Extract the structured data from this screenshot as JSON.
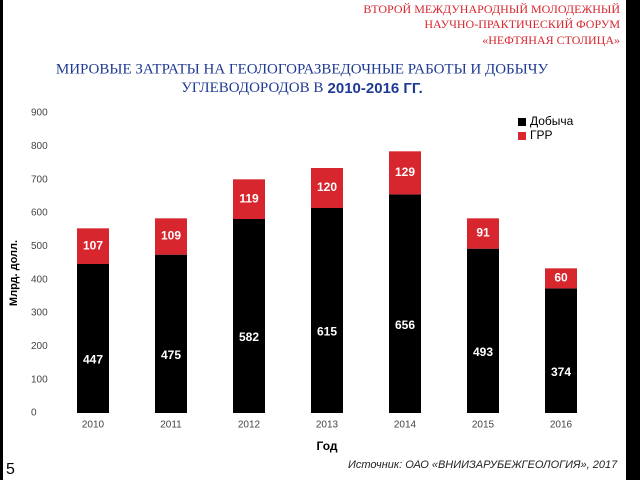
{
  "header": {
    "lines": [
      "ВТОРОЙ МЕЖДУНАРОДНЫЙ МОЛОДЕЖНЫЙ",
      "НАУЧНО-ПРАКТИЧЕСКИЙ ФОРУМ",
      "«НЕФТЯНАЯ СТОЛИЦА»"
    ]
  },
  "title": {
    "line1": "МИРОВЫЕ ЗАТРАТЫ НА ГЕОЛОГОРАЗВЕДОЧНЫЕ РАБОТЫ И ДОБЫЧУ",
    "line2": "УГЛЕВОДОРОДОВ В",
    "line2_bold": "2010-2016 ГГ."
  },
  "chart_data": {
    "type": "bar",
    "stacked": true,
    "categories": [
      "2010",
      "2011",
      "2012",
      "2013",
      "2014",
      "2015",
      "2016"
    ],
    "series": [
      {
        "name": "Добыча",
        "color": "#000000",
        "values": [
          447,
          475,
          582,
          615,
          656,
          493,
          374
        ]
      },
      {
        "name": "ГРР",
        "color": "#d7262e",
        "values": [
          107,
          109,
          119,
          120,
          129,
          91,
          60
        ]
      }
    ],
    "ylim": [
      0,
      900
    ],
    "yticks": [
      0,
      100,
      200,
      300,
      400,
      500,
      600,
      700,
      800,
      900
    ],
    "grid": false,
    "legend": "top-right",
    "y_label": "Млрд. долл.",
    "x_label": "Год"
  },
  "source": "Источник: ОАО «ВНИИЗАРУБЕЖГЕОЛОГИЯ», 2017",
  "page_number": "5"
}
